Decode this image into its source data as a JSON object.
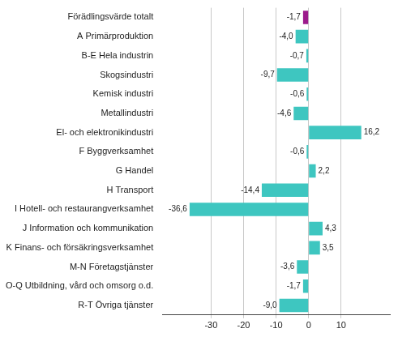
{
  "chart_data": {
    "type": "bar",
    "orientation": "horizontal",
    "categories": [
      "Förädlingsvärde totalt",
      "A Primärproduktion",
      "B-E Hela industrin",
      "Skogsindustri",
      "Kemisk industri",
      "Metallindustri",
      "El- och elektronikindustri",
      "F Byggverksamhet",
      "G Handel",
      "H Transport",
      "I Hotell- och restaurangverksamhet",
      "J Information och kommunikation",
      "K Finans- och försäkringsverksamhet",
      "M-N Företagstjänster",
      "O-Q Utbildning, vård och omsorg o.d.",
      "R-T Övriga tjänster"
    ],
    "values": [
      -1.7,
      -4.0,
      -0.7,
      -9.7,
      -0.6,
      -4.6,
      16.2,
      -0.6,
      2.2,
      -14.4,
      -36.6,
      4.3,
      3.5,
      -3.6,
      -1.7,
      -9.0
    ],
    "value_labels": [
      "-1,7",
      "-4,0",
      "-0,7",
      "-9,7",
      "-0,6",
      "-4,6",
      "16,2",
      "-0,6",
      "2,2",
      "-14,4",
      "-36,6",
      "4,3",
      "3,5",
      "-3,6",
      "-1,7",
      "-9,0"
    ],
    "colors": [
      "#9c1a8c",
      "#3ec6c0",
      "#3ec6c0",
      "#3ec6c0",
      "#3ec6c0",
      "#3ec6c0",
      "#3ec6c0",
      "#3ec6c0",
      "#3ec6c0",
      "#3ec6c0",
      "#3ec6c0",
      "#3ec6c0",
      "#3ec6c0",
      "#3ec6c0",
      "#3ec6c0",
      "#3ec6c0"
    ],
    "xlim": [
      -45,
      25
    ],
    "xticks": [
      -30,
      -20,
      -10,
      0,
      10
    ],
    "grid": true,
    "data_labels": true
  }
}
